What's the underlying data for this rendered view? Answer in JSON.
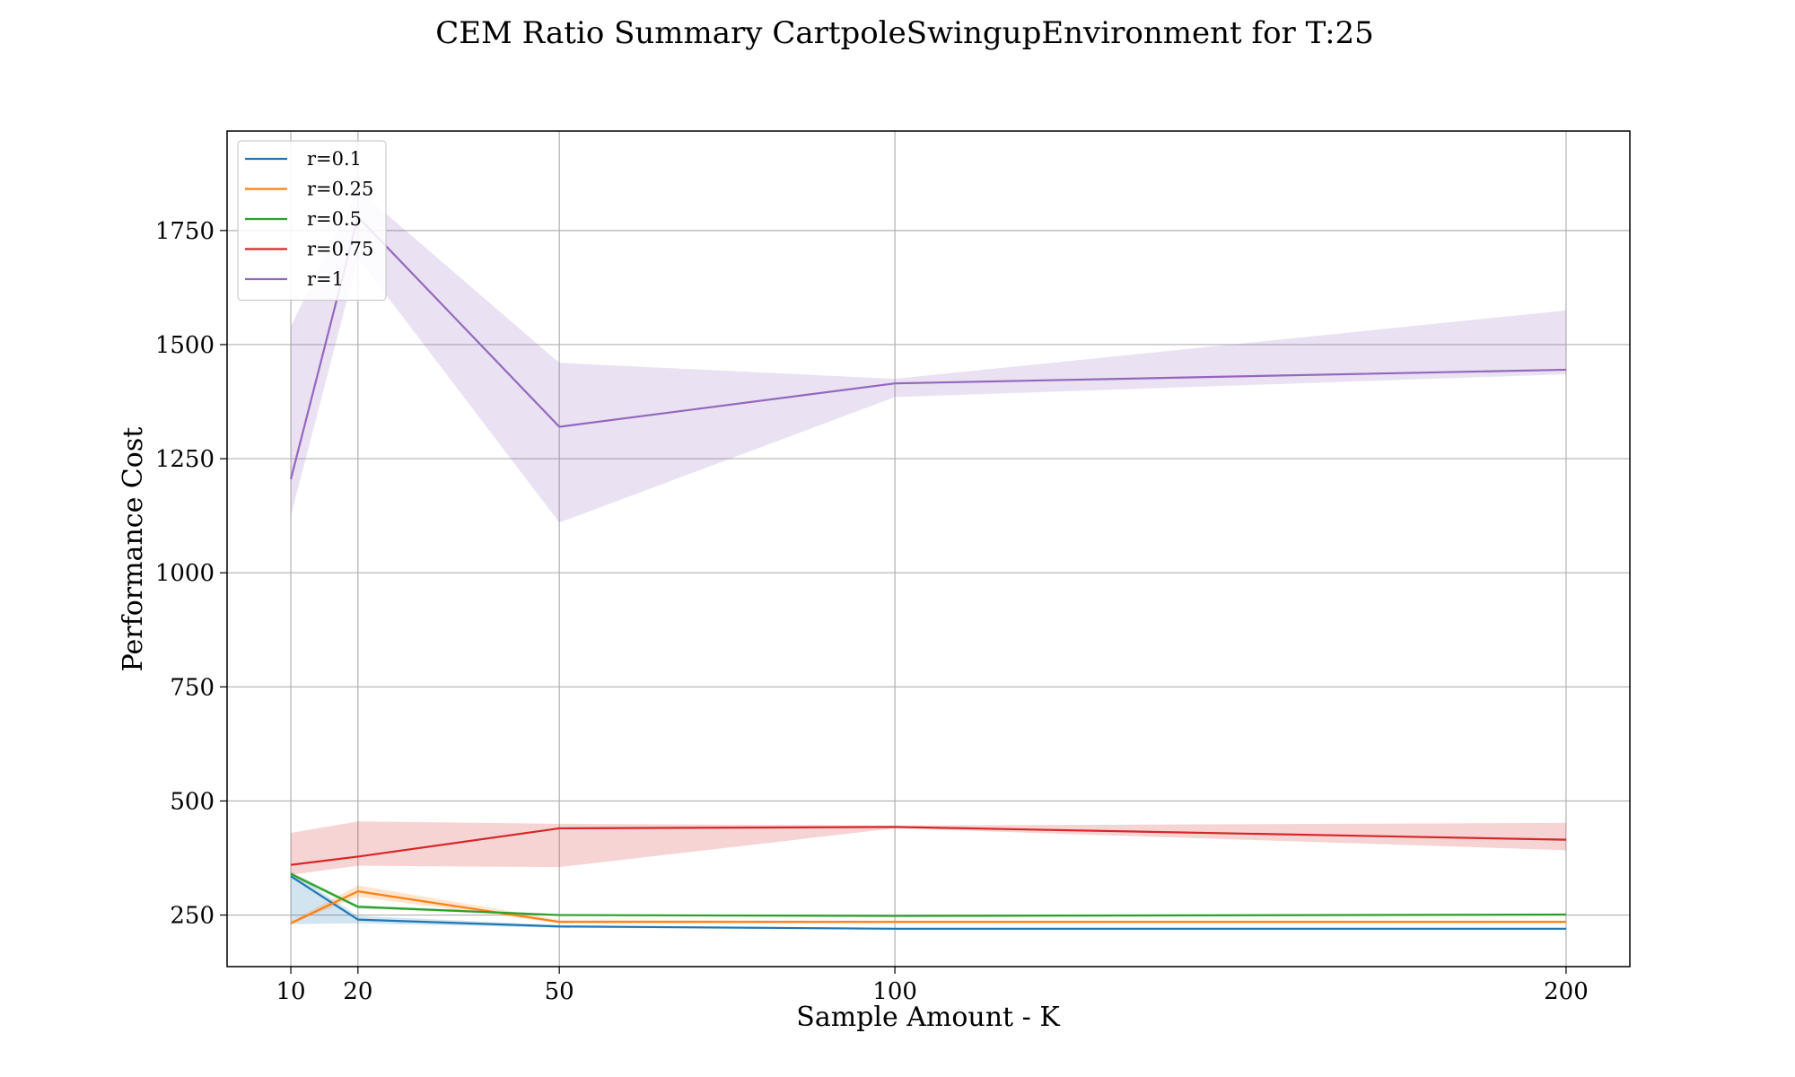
{
  "chart_data": {
    "type": "line",
    "title": "CEM Ratio Summary CartpoleSwingupEnvironment for T:25",
    "xlabel": "Sample Amount - K",
    "ylabel": "Performance Cost",
    "x": [
      10,
      20,
      50,
      100,
      200
    ],
    "xticks": [
      10,
      20,
      50,
      100,
      200
    ],
    "xlim": [
      0.5,
      209.5
    ],
    "ylim": [
      137,
      1968
    ],
    "yticks": [
      250,
      500,
      750,
      1000,
      1250,
      1500,
      1750
    ],
    "grid": true,
    "legend_position": "top-left",
    "series": [
      {
        "name": "r=0.1",
        "color": "#1f77b4",
        "values": [
          335,
          240,
          225,
          220,
          220
        ],
        "lower": [
          230,
          232,
          222,
          218,
          218
        ],
        "upper": [
          345,
          248,
          228,
          222,
          222
        ]
      },
      {
        "name": "r=0.25",
        "color": "#ff7f0e",
        "values": [
          232,
          302,
          235,
          235,
          235
        ],
        "lower": [
          230,
          290,
          232,
          232,
          232
        ],
        "upper": [
          236,
          315,
          240,
          238,
          238
        ]
      },
      {
        "name": "r=0.5",
        "color": "#2ca02c",
        "values": [
          340,
          268,
          250,
          248,
          251
        ],
        "lower": [
          335,
          264,
          248,
          246,
          249
        ],
        "upper": [
          345,
          272,
          252,
          250,
          253
        ]
      },
      {
        "name": "r=0.75",
        "color": "#d62728",
        "values": [
          360,
          378,
          440,
          443,
          415
        ],
        "lower": [
          338,
          358,
          355,
          440,
          392
        ],
        "upper": [
          430,
          455,
          450,
          446,
          452
        ]
      },
      {
        "name": "r=1",
        "color": "#9467bd",
        "values": [
          1205,
          1780,
          1320,
          1415,
          1445
        ],
        "lower": [
          1125,
          1690,
          1110,
          1385,
          1435
        ],
        "upper": [
          1540,
          1840,
          1460,
          1425,
          1575
        ]
      }
    ]
  }
}
